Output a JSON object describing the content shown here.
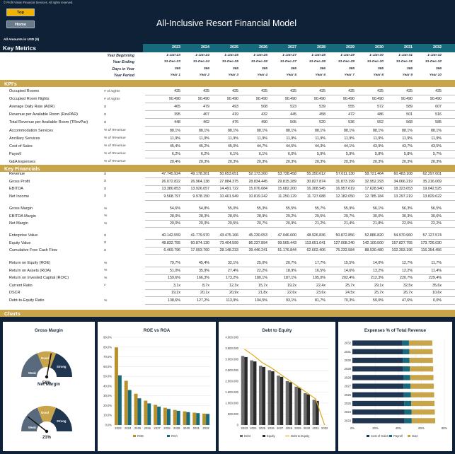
{
  "header": {
    "copyright": "© Profit Vision Financial Services. All rights reserved.",
    "top_button": "Top",
    "home_button": "Home",
    "title": "All-Inclusive Resort Financial Model",
    "amounts_note": "All Amounts in  USD ($)"
  },
  "key_metrics": {
    "label": "Key Metrics",
    "years": [
      "2023",
      "2024",
      "2025",
      "2026",
      "2027",
      "2028",
      "2029",
      "2030",
      "2031",
      "2032"
    ],
    "header_rows": [
      {
        "label": "Year Beginning",
        "values": [
          "1-Jan-23",
          "1-Jan-24",
          "1-Jan-25",
          "1-Jan-26",
          "1-Jan-27",
          "1-Jan-28",
          "1-Jan-29",
          "1-Jan-30",
          "1-Jan-31",
          "1-Jan-32"
        ]
      },
      {
        "label": "Year Ending",
        "values": [
          "31-Dec-23",
          "31-Dec-24",
          "31-Dec-25",
          "31-Dec-26",
          "31-Dec-27",
          "31-Dec-28",
          "31-Dec-29",
          "31-Dec-30",
          "31-Dec-31",
          "31-Dec-32"
        ]
      },
      {
        "label": "Days in Year",
        "values": [
          "365",
          "366",
          "365",
          "365",
          "365",
          "366",
          "365",
          "365",
          "365",
          "366"
        ]
      },
      {
        "label": "Year Period",
        "values": [
          "Year 1",
          "Year 2",
          "Year 3",
          "Year 4",
          "Year 5",
          "Year 6",
          "Year 7",
          "Year 8",
          "Year 9",
          "Year 10"
        ]
      }
    ]
  },
  "kpis": {
    "label": "KPI's",
    "rows": [
      {
        "label": "Occupied Rooms",
        "unit": "# of nights",
        "values": [
          "425",
          "425",
          "425",
          "425",
          "425",
          "425",
          "425",
          "425",
          "425",
          "425"
        ]
      },
      {
        "label": "Occupied Room Nights",
        "unit": "# of nights",
        "values": [
          "90.490",
          "90.490",
          "90.490",
          "90.490",
          "90.490",
          "90.490",
          "90.490",
          "90.490",
          "90.490",
          "90.490"
        ]
      },
      {
        "label": "Average Daily Rate (ADR)",
        "unit": "$",
        "values": [
          "465",
          "479",
          "493",
          "508",
          "523",
          "539",
          "555",
          "572",
          "589",
          "607"
        ]
      },
      {
        "label": "Revenue per Available Room (RevPAR)",
        "unit": "$",
        "values": [
          "395",
          "407",
          "419",
          "432",
          "445",
          "458",
          "472",
          "486",
          "501",
          "516"
        ]
      },
      {
        "label": "Total Revenue per Available Room (TRevPar)",
        "unit": "$",
        "values": [
          "448",
          "462",
          "476",
          "490",
          "505",
          "520",
          "536",
          "552",
          "568",
          "585"
        ]
      },
      {
        "label": "Accommodation Services",
        "unit": "% of Revenue",
        "values": [
          "88,1%",
          "88,1%",
          "88,1%",
          "88,1%",
          "88,1%",
          "88,1%",
          "88,1%",
          "88,1%",
          "88,1%",
          "88,1%"
        ]
      },
      {
        "label": "Ancillary Services",
        "unit": "% of Revenue",
        "values": [
          "11,9%",
          "11,9%",
          "11,9%",
          "11,9%",
          "11,9%",
          "11,9%",
          "11,9%",
          "11,9%",
          "11,9%",
          "11,9%"
        ]
      },
      {
        "label": "Cost of Sales",
        "unit": "% of Revenue",
        "values": [
          "45,4%",
          "45,2%",
          "45,0%",
          "44,7%",
          "44,5%",
          "44,3%",
          "44,1%",
          "43,9%",
          "43,7%",
          "43,5%"
        ]
      },
      {
        "label": "Payroll",
        "unit": "% of Revenue",
        "values": [
          "6,2%",
          "6,2%",
          "6,1%",
          "6,1%",
          "6,0%",
          "5,9%",
          "5,9%",
          "5,8%",
          "5,8%",
          "5,7%"
        ]
      },
      {
        "label": "G&A Expenses",
        "unit": "% of Revenue",
        "values": [
          "20,4%",
          "20,3%",
          "20,3%",
          "20,3%",
          "20,3%",
          "20,3%",
          "20,3%",
          "20,3%",
          "20,3%",
          "20,3%"
        ]
      }
    ]
  },
  "key_financials": {
    "label": "Key Financials",
    "groups": [
      [
        {
          "label": "Revenue",
          "unit": "$",
          "values": [
            "47.745.924",
            "49.178.301",
            "50.653.651",
            "52.173.260",
            "53.738.458",
            "55.350.612",
            "57.011.130",
            "58.721.464",
            "60.483.108",
            "62.297.601"
          ]
        },
        {
          "label": "Gross Profit",
          "unit": "$",
          "values": [
            "26.072.822",
            "26.964.138",
            "27.884.375",
            "28.834.445",
            "29.815.289",
            "30.827.874",
            "31.873.199",
            "32.952.293",
            "34.066.219",
            "35.216.069"
          ]
        },
        {
          "label": "EBITDA",
          "unit": "$",
          "values": [
            "13.380.853",
            "13.926.657",
            "14.491.722",
            "15.076.684",
            "15.682.200",
            "16.308.945",
            "16.957.619",
            "17.628.940",
            "18.323.653",
            "19.042.525"
          ]
        },
        {
          "label": "Net Income",
          "unit": "$",
          "values": [
            "9.568.797",
            "9.978.150",
            "10.401.949",
            "10.819.242",
            "11.250.129",
            "11.727.688",
            "12.182.050",
            "12.785.184",
            "13.297.219",
            "13.829.622"
          ]
        }
      ],
      [
        {
          "label": "Gross Margin",
          "unit": "%",
          "values": [
            "54,6%",
            "54,8%",
            "55,0%",
            "55,3%",
            "55,5%",
            "55,7%",
            "55,9%",
            "56,1%",
            "56,3%",
            "56,5%"
          ]
        },
        {
          "label": "EBITDA Margin",
          "unit": "%",
          "values": [
            "28,0%",
            "28,3%",
            "28,6%",
            "28,9%",
            "29,2%",
            "29,5%",
            "29,7%",
            "30,0%",
            "30,3%",
            "30,6%"
          ]
        },
        {
          "label": "Net Margin",
          "unit": "%",
          "values": [
            "20,0%",
            "20,3%",
            "20,5%",
            "20,7%",
            "20,9%",
            "21,2%",
            "21,4%",
            "21,8%",
            "22,0%",
            "22,2%"
          ]
        }
      ],
      [
        {
          "label": "Enterprise Value",
          "unit": "$",
          "values": [
            "40.142.559",
            "41.779.970",
            "43.475.166",
            "45.230.053",
            "47.046.600",
            "48.926.836",
            "50.872.856",
            "52.886.820",
            "54.970.960",
            "57.127.574"
          ]
        },
        {
          "label": "Equity Value",
          "unit": "$",
          "values": [
            "48.832.755",
            "60.874.130",
            "73.404.599",
            "86.237.894",
            "99.565.443",
            "113.651.641",
            "127.008.240",
            "142.100.500",
            "157.827.755",
            "173.726.030"
          ]
        },
        {
          "label": "Cumulative Free Cash Flow",
          "unit": "$",
          "values": [
            "6.469.796",
            "17.093.760",
            "28.148.233",
            "39.446.241",
            "51.176.844",
            "62.602.406",
            "75.232.584",
            "88.530.480",
            "102.393.196",
            "116.354.456"
          ]
        }
      ],
      [
        {
          "label": "Return on Equity (ROE)",
          "unit": "%",
          "values": [
            "79,7%",
            "45,4%",
            "32,1%",
            "25,0%",
            "20,7%",
            "17,7%",
            "15,5%",
            "14,0%",
            "12,7%",
            "11,7%"
          ]
        },
        {
          "label": "Return on Assets (ROA)",
          "unit": "%",
          "values": [
            "51,0%",
            "35,9%",
            "27,4%",
            "22,2%",
            "18,9%",
            "16,5%",
            "14,6%",
            "13,2%",
            "12,2%",
            "11,4%"
          ]
        },
        {
          "label": "Return on Invested Capital (ROIC)",
          "unit": "%",
          "values": [
            "159,6%",
            "166,3%",
            "173,2%",
            "180,1%",
            "187,1%",
            "195,0%",
            "202,4%",
            "212,3%",
            "220,7%",
            "229,4%"
          ]
        },
        {
          "label": "Current Ratio",
          "unit": "x",
          "values": [
            "3,1x",
            "8,7x",
            "12,3x",
            "15,7x",
            "19,2x",
            "22,4x",
            "25,7x",
            "29,1x",
            "32,5x",
            "35,6x"
          ]
        },
        {
          "label": "DSCR",
          "unit": "",
          "values": [
            "19,2x",
            "20,1x",
            "20,9x",
            "21,8x",
            "22,6x",
            "23,6x",
            "24,5x",
            "25,7x",
            "26,7x",
            "10,6x"
          ]
        },
        {
          "label": "Debt-to-Equity Ratio",
          "unit": "%",
          "values": [
            "138,6%",
            "127,2%",
            "113,9%",
            "104,5%",
            "93,1%",
            "81,7%",
            "70,3%",
            "59,0%",
            "47,6%",
            "0,0%"
          ]
        }
      ]
    ]
  },
  "charts_section": {
    "label": "Charts",
    "gross_margin": {
      "title": "Gross Margin",
      "value": "56%",
      "pct": 56,
      "band_labels": [
        "Weak",
        "Good",
        "Strong"
      ]
    },
    "net_margin": {
      "title": "Net Margin",
      "value": "21%",
      "pct": 21,
      "band_labels": [
        "Weak",
        "Good",
        "Strong"
      ]
    }
  },
  "colors": {
    "navy": "#0f2136",
    "teal": "#17697c",
    "gold": "#c8a44a",
    "dark_gray": "#3a3a3a"
  },
  "chart_data": [
    {
      "type": "bar",
      "title": "ROE vs ROA",
      "categories": [
        "2023",
        "2024",
        "2025",
        "2026",
        "2027",
        "2028",
        "2029",
        "2030",
        "2031",
        "2032"
      ],
      "series": [
        {
          "name": "ROE",
          "values": [
            79.7,
            45.4,
            32.1,
            25.0,
            20.7,
            17.7,
            15.5,
            14.0,
            12.7,
            11.7
          ]
        },
        {
          "name": "ROA",
          "values": [
            51.0,
            35.9,
            27.4,
            22.2,
            18.9,
            16.5,
            14.6,
            13.2,
            12.2,
            11.4
          ]
        }
      ],
      "yticks": [
        "0,0%",
        "10,0%",
        "20,0%",
        "30,0%",
        "40,0%",
        "50,0%",
        "60,0%",
        "70,0%",
        "80,0%",
        "90,0%"
      ],
      "ylim": [
        0,
        90
      ]
    },
    {
      "type": "bar",
      "title": "Debt to Equity",
      "categories": [
        "2023",
        "2024",
        "2025",
        "2026",
        "2027",
        "2028",
        "2029",
        "2030",
        "2031",
        "2032"
      ],
      "series": [
        {
          "name": "Debt",
          "values": [
            3150000,
            2950000,
            2700000,
            2500000,
            2250000,
            2000000,
            1750000,
            1450000,
            1150000,
            0
          ]
        },
        {
          "name": "Equity",
          "values": [
            3100000,
            2900000,
            2650000,
            2450000,
            2200000,
            1950000,
            1700000,
            1400000,
            1100000,
            0
          ]
        },
        {
          "name": "Debt to Equity",
          "values": [
            138.6,
            127.2,
            113.9,
            104.5,
            93.1,
            81.7,
            70.3,
            59.0,
            47.6,
            0.0
          ]
        }
      ],
      "yticks": [
        "0",
        "500.000",
        "1.000.000",
        "1.500.000",
        "2.000.000",
        "2.500.000",
        "3.000.000",
        "3.500.000",
        "4.000.000"
      ],
      "ylim": [
        0,
        4000000
      ]
    },
    {
      "type": "bar",
      "title": "Expenses % of Total Revenue",
      "categories": [
        "2032",
        "2031",
        "2030",
        "2029",
        "2028",
        "2027",
        "2026",
        "2025",
        "2024",
        "2023"
      ],
      "series": [
        {
          "name": "Cost of Sales",
          "values": [
            43.5,
            43.7,
            43.9,
            44.1,
            44.3,
            44.5,
            44.7,
            45.0,
            45.2,
            45.4
          ]
        },
        {
          "name": "Payroll",
          "values": [
            5.7,
            5.8,
            5.8,
            5.9,
            5.9,
            6.0,
            6.1,
            6.1,
            6.2,
            6.2
          ]
        },
        {
          "name": "G&A",
          "values": [
            20.3,
            20.3,
            20.3,
            20.3,
            20.3,
            20.3,
            20.3,
            20.3,
            20.3,
            20.4
          ]
        }
      ],
      "xticks": [
        "0%",
        "20%",
        "40%",
        "60%",
        "80%"
      ],
      "xlim": [
        0,
        80
      ]
    }
  ]
}
